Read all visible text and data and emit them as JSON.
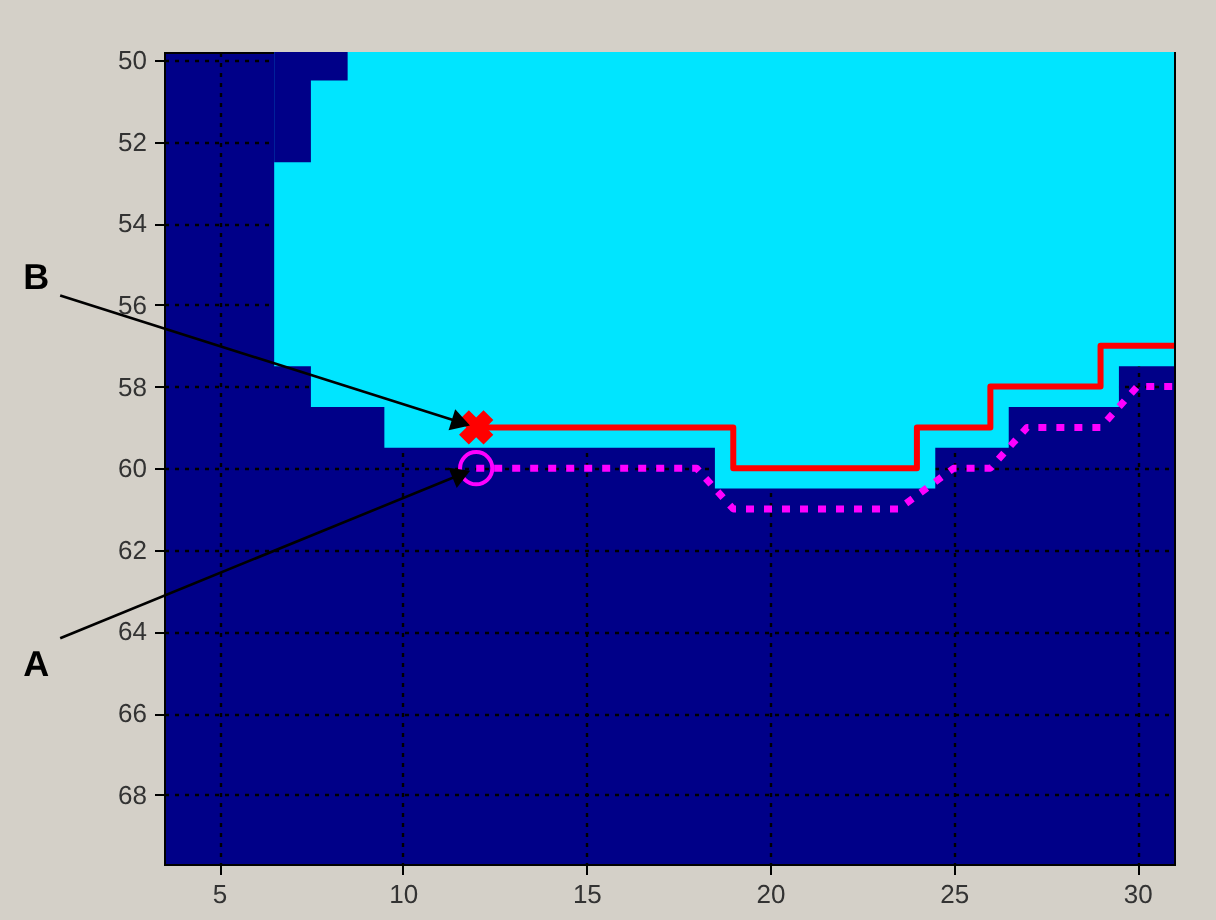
{
  "chart_data": {
    "type": "line",
    "xlim": [
      3.5,
      31
    ],
    "xticks": [
      5,
      10,
      15,
      20,
      25,
      30
    ],
    "ylim": [
      69.7,
      49.8
    ],
    "yticks": [
      50,
      52,
      54,
      56,
      58,
      60,
      62,
      64,
      66,
      68
    ],
    "grid": true,
    "series": [
      {
        "type": "area",
        "color": "#00e5ff",
        "x": [
          6.5,
          7.5,
          9.5,
          18.5,
          24.5,
          26.5,
          29.5,
          31
        ],
        "values": [
          57.5,
          58.5,
          59.5,
          60.5,
          59.5,
          58.5,
          57.5,
          57.5
        ]
      },
      {
        "type": "area",
        "color": "#000088",
        "x": [
          6.5,
          7.5,
          8.5
        ],
        "values": [
          52.5,
          50.5,
          50.5
        ]
      },
      {
        "type": "step",
        "color": "#ff0000",
        "line_style": "solid",
        "x": [
          12,
          19,
          24,
          26,
          29,
          31
        ],
        "values": [
          59,
          60,
          59,
          58,
          57,
          57
        ]
      },
      {
        "color": "#ff00ff",
        "line_style": "dotted",
        "x": [
          12,
          18,
          19,
          23.5,
          25,
          26,
          27,
          29,
          30,
          31
        ],
        "values": [
          60,
          60,
          61,
          61,
          60,
          60,
          59,
          59,
          58,
          58
        ]
      },
      {
        "type": "scatter",
        "color": "#ff0000",
        "marker": "cross",
        "x": [
          12
        ],
        "values": [
          59
        ]
      },
      {
        "type": "scatter",
        "color": "#ff00ff",
        "marker": "circle",
        "x": [
          12
        ],
        "values": [
          60
        ]
      }
    ],
    "annotations": [
      {
        "text": "B",
        "x": 12,
        "y": 59
      },
      {
        "text": "A",
        "x": 12,
        "y": 60
      }
    ]
  }
}
